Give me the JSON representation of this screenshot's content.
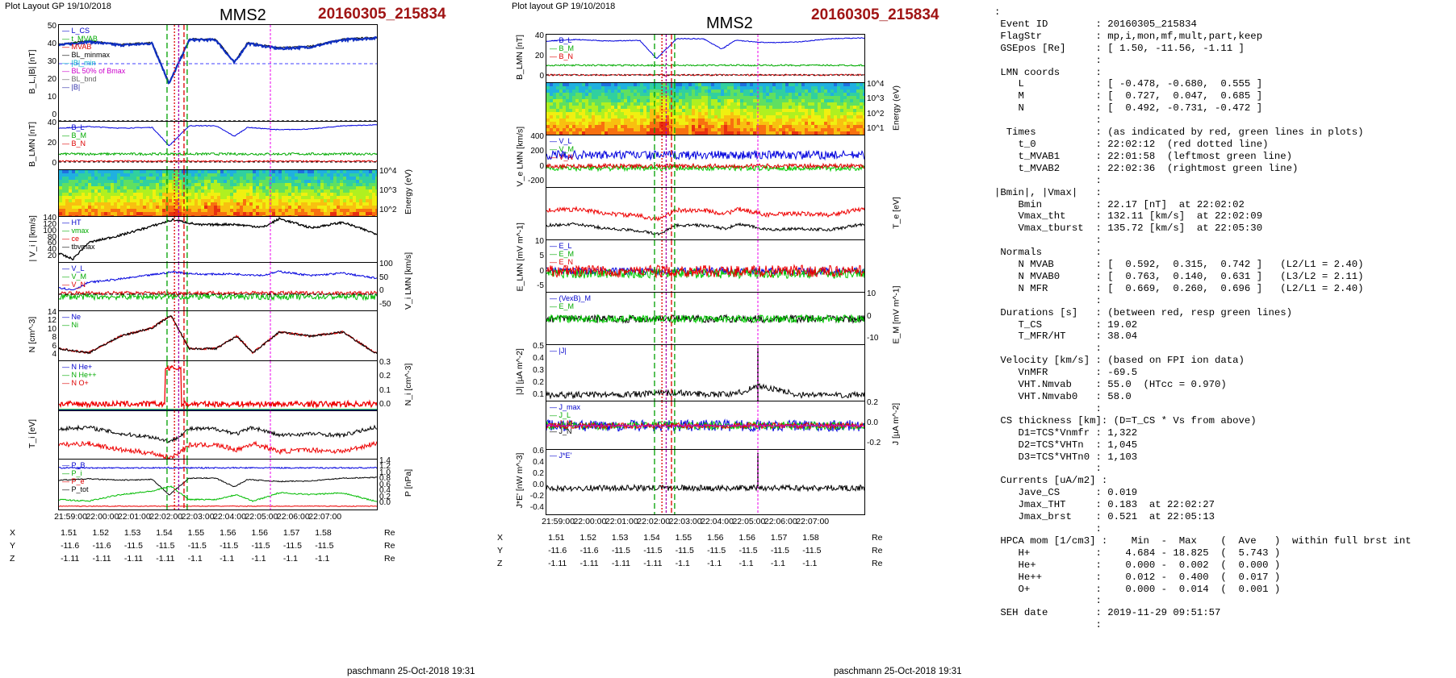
{
  "left": {
    "header": "Plot Layout GP 19/10/2018",
    "sc": "MMS2",
    "event": "20160305_215834",
    "footer": "paschmann 25-Oct-2018 19:31",
    "panels": [
      {
        "ylabel": "B_L,|B| [nT]",
        "ticks": [
          "50",
          "40",
          "30",
          "20",
          "10",
          "0"
        ],
        "legend": [
          "L_CS",
          "t_MVAB",
          "MVAB",
          "BL_minmax",
          "|B|_min",
          "BL 50% of Bmax",
          "BL_bnd",
          "|B|"
        ]
      },
      {
        "ylabel": "B_LMN [nT]",
        "ticks": [
          "40",
          "20",
          "0"
        ],
        "legend": [
          "B_L",
          "B_M",
          "B_N"
        ]
      },
      {
        "ylabel": "Energy (eV)",
        "ticks": [
          "10^4",
          "10^3",
          "10^2"
        ]
      },
      {
        "ylabel": "| V_i | [km/s]",
        "ticks": [
          "140",
          "120",
          "100",
          "80",
          "60",
          "40",
          "20"
        ],
        "legend": [
          "HT",
          "vmax",
          "ce",
          "tbvmax"
        ]
      },
      {
        "ylabel": "V_i LMN [km/s]",
        "ticks": [
          "100",
          "50",
          "0",
          "-50"
        ],
        "legend": [
          "V_L",
          "V_M",
          "V_N"
        ]
      },
      {
        "ylabel": "N [cm^-3]",
        "ticks": [
          "14",
          "12",
          "10",
          "8",
          "6",
          "4"
        ],
        "legend": [
          "Ne",
          "Ni"
        ]
      },
      {
        "ylabel": "N_i [cm^-3]",
        "ticks": [
          "0.3",
          "0.2",
          "0.1",
          "0.0"
        ],
        "legend": [
          "N He+",
          "N He++",
          "N O+"
        ]
      },
      {
        "ylabel": "T_i [eV]",
        "ticks": []
      },
      {
        "ylabel": "P [nPa]",
        "ticks": [
          "1.4",
          "1.2",
          "1.0",
          "0.8",
          "0.6",
          "0.4",
          "0.2",
          "0.0"
        ],
        "legend": [
          "P_B",
          "P_i",
          "P_e",
          "P_tot"
        ]
      }
    ],
    "xticks": [
      "21:59:00",
      "22:00:00",
      "22:01:00",
      "22:02:00",
      "22:03:00",
      "22:04:00",
      "22:05:00",
      "22:06:00",
      "22:07:00"
    ],
    "ephem": {
      "X": [
        "1.51",
        "1.52",
        "1.53",
        "1.54",
        "1.55",
        "1.56",
        "1.56",
        "1.57",
        "1.58"
      ],
      "Y": [
        "-11.6",
        "-11.6",
        "-11.5",
        "-11.5",
        "-11.5",
        "-11.5",
        "-11.5",
        "-11.5",
        "-11.5"
      ],
      "Z": [
        "-1.11",
        "-1.11",
        "-1.11",
        "-1.11",
        "-1.1",
        "-1.1",
        "-1.1",
        "-1.1",
        "-1.1"
      ],
      "unit": "Re"
    }
  },
  "right": {
    "header": "Plot layout GP 19/10/2018",
    "sc": "MMS2",
    "event": "20160305_215834",
    "footer": "paschmann 25-Oct-2018 19:31",
    "panels": [
      {
        "ylabel": "B_LMN [nT]",
        "ticks": [
          "40",
          "20",
          "0"
        ],
        "legend": [
          "B_L",
          "B_M",
          "B_N"
        ]
      },
      {
        "ylabel": "Energy (eV)",
        "ticks": [
          "10^4",
          "10^3",
          "10^2",
          "10^1"
        ]
      },
      {
        "ylabel": "V_e LMN [km/s]",
        "ticks": [
          "400",
          "200",
          "0",
          "-200"
        ],
        "legend": [
          "V_L",
          "V_M",
          "V_N"
        ]
      },
      {
        "ylabel": "T_e [eV]",
        "ticks": []
      },
      {
        "ylabel": "E_LMN [mV m^-1]",
        "ticks": [
          "10",
          "5",
          "0",
          "-5"
        ],
        "legend": [
          "E_L",
          "E_M",
          "E_N"
        ]
      },
      {
        "ylabel": "E_M [mV m^-1]",
        "ticks": [
          "10",
          "0",
          "-10"
        ],
        "legend": [
          "(VexB)_M",
          "E_M"
        ]
      },
      {
        "ylabel": "|J| [µA m^-2]",
        "ticks": [
          "0.5",
          "0.4",
          "0.3",
          "0.2",
          "0.1"
        ],
        "legend": [
          "|J|"
        ]
      },
      {
        "ylabel": "J [µA m^-2]",
        "ticks": [
          "0.2",
          "0.0",
          "-0.2"
        ],
        "legend": [
          "J_max",
          "J_L",
          "J_M",
          "J_N"
        ]
      },
      {
        "ylabel": "J*E' [nW m^-3]",
        "ticks": [
          "0.6",
          "0.4",
          "0.2",
          "0.0",
          "-0.2",
          "-0.4"
        ],
        "legend": [
          "J*E'"
        ]
      }
    ],
    "xticks": [
      "21:59:00",
      "22:00:00",
      "22:01:00",
      "22:02:00",
      "22:03:00",
      "22:04:00",
      "22:05:00",
      "22:06:00",
      "22:07:00"
    ],
    "ephem": {
      "X": [
        "1.51",
        "1.52",
        "1.53",
        "1.54",
        "1.55",
        "1.56",
        "1.56",
        "1.57",
        "1.58"
      ],
      "Y": [
        "-11.6",
        "-11.6",
        "-11.5",
        "-11.5",
        "-11.5",
        "-11.5",
        "-11.5",
        "-11.5",
        "-11.5"
      ],
      "Z": [
        "-1.11",
        "-1.11",
        "-1.11",
        "-1.11",
        "-1.1",
        "-1.1",
        "-1.1",
        "-1.1",
        "-1.1"
      ],
      "unit": "Re"
    }
  },
  "info_text": ":\n Event ID        : 20160305_215834\n FlagStr         : mp,i,mon,mf,mult,part,keep\n GSEpos [Re]     : [ 1.50, -11.56, -1.11 ]\n                 :\n LMN coords      :\n    L            : [ -0.478, -0.680,  0.555 ]\n    M            : [  0.727,  0.047,  0.685 ]\n    N            : [  0.492, -0.731, -0.472 ]\n                 :\n  Times          : (as indicated by red, green lines in plots)\n    t_0          : 22:02:12  (red dotted line)\n    t_MVAB1      : 22:01:58  (leftmost green line)\n    t_MVAB2      : 22:02:36  (rightmost green line)\n                 :\n|Bmin|, |Vmax|   :\n    Bmin         : 22.17 [nT]  at 22:02:02\n    Vmax_tht     : 132.11 [km/s]  at 22:02:09\n    Vmax_tburst  : 135.72 [km/s]  at 22:05:30\n                 :\n Normals         :\n    N MVAB       : [  0.592,  0.315,  0.742 ]   (L2/L1 = 2.40)\n    N MVAB0      : [  0.763,  0.140,  0.631 ]   (L3/L2 = 2.11)\n    N MFR        : [  0.669,  0.260,  0.696 ]   (L2/L1 = 2.40)\n                 :\n Durations [s]   : (between red, resp green lines)\n    T_CS         : 19.02\n    T_MFR/HT     : 38.04\n                 :\n Velocity [km/s] : (based on FPI ion data)\n    VnMFR        : -69.5\n    VHT.Nmvab    : 55.0  (HTcc = 0.970)\n    VHT.Nmvab0   : 58.0\n                 :\n CS thickness [km]: (D=T_CS * Vs from above)\n    D1=TCS*Vnmfr : 1,322\n    D2=TCS*VHTn  : 1,045\n    D3=TCS*VHTn0 : 1,103\n                 :\n Currents [uA/m2] :\n    Jave_CS      : 0.019\n    Jmax_THT     : 0.183  at 22:02:27\n    Jmax_brst    : 0.521  at 22:05:13\n                 :\n HPCA mom [1/cm3] :    Min  -  Max    (  Ave   )  within full brst int\n    H+           :    4.684 - 18.825  (  5.743 )\n    He+          :    0.000 -  0.002  (  0.000 )\n    He++         :    0.012 -  0.400  (  0.017 )\n    O+           :    0.000 -  0.014  (  0.001 )\n                 :\n SEH date        : 2019-11-29 09:51:57\n                 :",
  "chart_data": [
    {
      "type": "line",
      "title": "MMS2 20160305_215834",
      "x_range": [
        "21:58:34",
        "22:08:34"
      ],
      "series": [
        {
          "name": "|B|",
          "unit": "nT",
          "x": [
            "21:58:34",
            "21:59:30",
            "22:00:30",
            "22:01:30",
            "22:02:02",
            "22:02:40",
            "22:03:30",
            "22:04:05",
            "22:04:30",
            "22:05:30",
            "22:06:30",
            "22:07:30",
            "22:08:30"
          ],
          "values": [
            44,
            46,
            44,
            45,
            22.17,
            47,
            47,
            34,
            45,
            42,
            43,
            47,
            48
          ]
        },
        {
          "name": "|Vi|",
          "unit": "km/s",
          "x": [
            "21:58:34",
            "21:59:00",
            "21:59:30",
            "22:00:30",
            "22:01:30",
            "22:02:09",
            "22:03:00",
            "22:04:00",
            "22:05:00",
            "22:05:30",
            "22:06:30",
            "22:07:30",
            "22:08:30"
          ],
          "values": [
            40,
            25,
            70,
            90,
            115,
            132,
            118,
            120,
            112,
            135,
            110,
            125,
            95
          ]
        },
        {
          "name": "Ni",
          "unit": "cm^-3",
          "x": [
            "21:58:34",
            "21:59:30",
            "22:00:30",
            "22:01:30",
            "22:02:05",
            "22:02:40",
            "22:03:30",
            "22:04:10",
            "22:04:40",
            "22:05:30",
            "22:06:30",
            "22:07:30",
            "22:08:30"
          ],
          "values": [
            6,
            5,
            9,
            11,
            14,
            6,
            6,
            9,
            5,
            10,
            9,
            10,
            5
          ]
        }
      ]
    },
    {
      "type": "line",
      "title": "MMS2 20160305_215834",
      "x_range": [
        "21:58:34",
        "22:08:34"
      ],
      "series": [
        {
          "name": "|J|",
          "unit": "µA m^-2",
          "x": [
            "21:58:34",
            "22:00:00",
            "22:01:30",
            "22:02:27",
            "22:03:30",
            "22:04:30",
            "22:05:13",
            "22:06:30",
            "22:08:30"
          ],
          "values": [
            0.05,
            0.08,
            0.1,
            0.183,
            0.12,
            0.1,
            0.521,
            0.08,
            0.06
          ]
        }
      ]
    }
  ]
}
